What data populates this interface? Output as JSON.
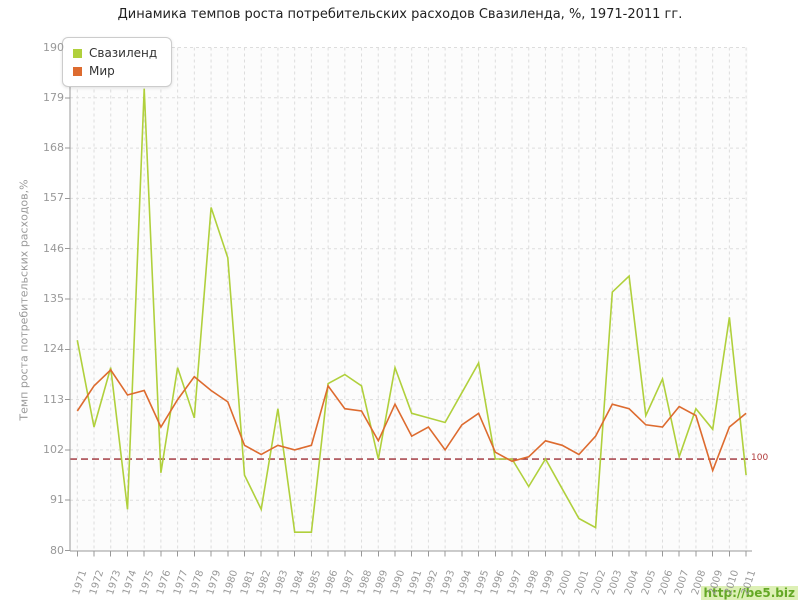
{
  "title": "Динамика темпов роста потребительских расходов Свазиленда, %, 1971-2011 гг.",
  "legend": {
    "items": [
      {
        "label": "Свазиленд",
        "color": "#b0d03c"
      },
      {
        "label": "Мир",
        "color": "#dd6b2f"
      }
    ]
  },
  "reference_line": {
    "value": 100,
    "label": "100",
    "color": "#9b2d34"
  },
  "watermark": "http://be5.biz",
  "chart_data": {
    "type": "line",
    "title": "Динамика темпов роста потребительских расходов Свазиленда, %, 1971-2011 гг.",
    "xlabel": "",
    "ylabel": "Темп роста потребительских расходов,%",
    "ylim": [
      80,
      190
    ],
    "yticks": [
      80,
      91,
      102,
      113,
      124,
      135,
      146,
      157,
      168,
      179,
      190
    ],
    "grid": true,
    "legend_position": "top-left",
    "categories": [
      "1971",
      "1972",
      "1973",
      "1974",
      "1975",
      "1976",
      "1977",
      "1978",
      "1979",
      "1980",
      "1981",
      "1982",
      "1983",
      "1984",
      "1985",
      "1986",
      "1987",
      "1988",
      "1989",
      "1990",
      "1991",
      "1992",
      "1993",
      "1994",
      "1995",
      "1996",
      "1997",
      "1998",
      "1999",
      "2000",
      "2001",
      "2002",
      "2003",
      "2004",
      "2005",
      "2006",
      "2007",
      "2008",
      "2009",
      "2010",
      "2011"
    ],
    "series": [
      {
        "name": "Свазиленд",
        "color": "#b0d03c",
        "values": [
          126,
          107,
          120,
          89,
          181,
          97,
          120,
          109,
          155,
          144,
          96.5,
          89,
          111,
          84,
          84,
          116.5,
          118.5,
          116,
          100,
          120,
          110,
          109,
          108,
          114.5,
          121,
          100,
          100,
          94,
          100,
          93.5,
          87,
          85,
          136.5,
          140,
          109.5,
          117.5,
          100.5,
          111,
          106.5,
          131,
          96.5
        ]
      },
      {
        "name": "Мир",
        "color": "#dd6b2f",
        "values": [
          110.5,
          116,
          119.5,
          114,
          115,
          107,
          113,
          118,
          115,
          112.5,
          103,
          101,
          103,
          102,
          103,
          116,
          111,
          110.5,
          104,
          112,
          105,
          107,
          102,
          107.5,
          110,
          101.5,
          99.5,
          100.5,
          104,
          103,
          101,
          105,
          112,
          111,
          107.5,
          107,
          111.5,
          109.5,
          97.5,
          107,
          110
        ]
      }
    ]
  }
}
